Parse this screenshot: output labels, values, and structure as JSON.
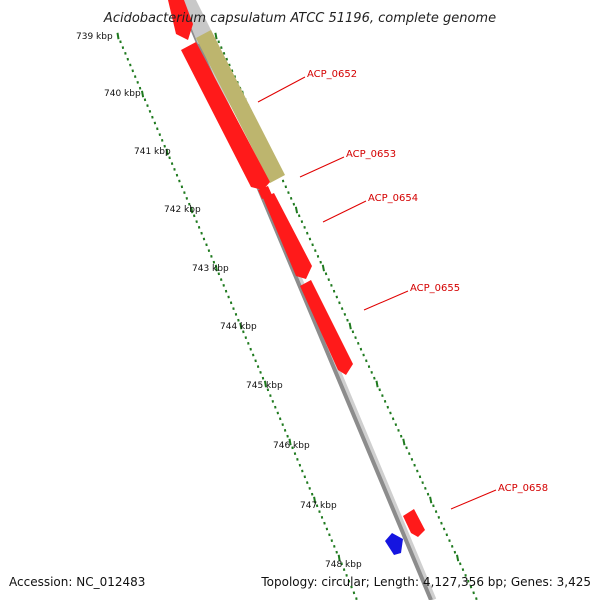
{
  "title": "Acidobacterium capsulatum ATCC 51196, complete genome",
  "accession": "Accession: NC_012483",
  "summary": "Topology: circular; Length: 4,127,356 bp; Genes: 3,425",
  "colors": {
    "backbone": "#8c8c8c",
    "forward_gene": "#ff1a1a",
    "highlighted_gene": "#bdb56e",
    "blue_gene": "#1515e0",
    "scale_dots": "#1f7a1f",
    "label_text": "#d40000",
    "label_line": "#e00000"
  },
  "scale_ticks": [
    {
      "kbp": 739,
      "label": "739 kbp"
    },
    {
      "kbp": 740,
      "label": "740 kbp"
    },
    {
      "kbp": 741,
      "label": "741 kbp"
    },
    {
      "kbp": 742,
      "label": "742 kbp"
    },
    {
      "kbp": 743,
      "label": "743 kbp"
    },
    {
      "kbp": 744,
      "label": "744 kbp"
    },
    {
      "kbp": 745,
      "label": "745 kbp"
    },
    {
      "kbp": 746,
      "label": "746 kbp"
    },
    {
      "kbp": 747,
      "label": "747 kbp"
    },
    {
      "kbp": 748,
      "label": "748 kbp"
    }
  ],
  "genes": [
    {
      "name": "ACP_0652",
      "labeled": true,
      "color": "highlighted_gene",
      "strand": "plus"
    },
    {
      "name": "ACP_0653",
      "labeled": true,
      "color": "forward_gene",
      "strand": "plus"
    },
    {
      "name": "ACP_0654",
      "labeled": true,
      "color": "forward_gene",
      "strand": "plus"
    },
    {
      "name": "ACP_0655",
      "labeled": true,
      "color": "forward_gene",
      "strand": "plus"
    },
    {
      "name": "ACP_0658",
      "labeled": true,
      "color": "forward_gene",
      "strand": "plus"
    },
    {
      "name": "",
      "labeled": false,
      "color": "blue_gene",
      "strand": "minus"
    }
  ]
}
